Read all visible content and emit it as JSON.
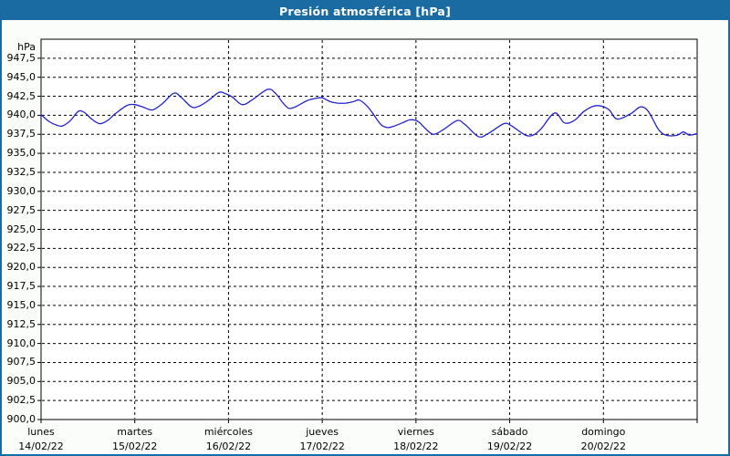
{
  "window": {
    "title": "Presión atmosférica [hPa]"
  },
  "colors": {
    "titlebar_bg": "#1b6ba3",
    "titlebar_text": "#ffffff",
    "frame_border": "#1b6ba3",
    "page_bg": "#fafdfa",
    "plot_bg": "#ffffff",
    "grid": "#000000",
    "axis": "#000000",
    "text": "#000000",
    "line": "#2222cc"
  },
  "chart_data": {
    "type": "line",
    "title": "Presión atmosférica [hPa]",
    "y_unit": "hPa",
    "ylim": [
      900,
      950
    ],
    "ytick_step": 2.5,
    "x_hours_span": 168,
    "grid": "dashed",
    "legend": "none",
    "yticks": [
      {
        "label": "947,5",
        "value": 947.5
      },
      {
        "label": "945,0",
        "value": 945.0
      },
      {
        "label": "942,5",
        "value": 942.5
      },
      {
        "label": "940,0",
        "value": 940.0
      },
      {
        "label": "937,5",
        "value": 937.5
      },
      {
        "label": "935,0",
        "value": 935.0
      },
      {
        "label": "932,5",
        "value": 932.5
      },
      {
        "label": "930,0",
        "value": 930.0
      },
      {
        "label": "927,5",
        "value": 927.5
      },
      {
        "label": "925,0",
        "value": 925.0
      },
      {
        "label": "922,5",
        "value": 922.5
      },
      {
        "label": "920,0",
        "value": 920.0
      },
      {
        "label": "917,5",
        "value": 917.5
      },
      {
        "label": "915,0",
        "value": 915.0
      },
      {
        "label": "912,5",
        "value": 912.5
      },
      {
        "label": "910,0",
        "value": 910.0
      },
      {
        "label": "907,5",
        "value": 907.5
      },
      {
        "label": "905,0",
        "value": 905.0
      },
      {
        "label": "902,5",
        "value": 902.5
      },
      {
        "label": "900,0",
        "value": 900.0
      }
    ],
    "days": [
      {
        "name": "lunes",
        "date": "14/02/22"
      },
      {
        "name": "martes",
        "date": "15/02/22"
      },
      {
        "name": "miércoles",
        "date": "16/02/22"
      },
      {
        "name": "jueves",
        "date": "17/02/22"
      },
      {
        "name": "viernes",
        "date": "18/02/22"
      },
      {
        "name": "sábado",
        "date": "19/02/22"
      },
      {
        "name": "domingo",
        "date": "20/02/22"
      }
    ],
    "series": [
      {
        "name": "presión atmosférica",
        "color": "#2222cc",
        "points_t_hPa": [
          [
            0,
            940.1
          ],
          [
            2,
            939.2
          ],
          [
            4,
            938.7
          ],
          [
            5.5,
            938.6
          ],
          [
            7.5,
            939.3
          ],
          [
            9.5,
            940.5
          ],
          [
            11,
            940.4
          ],
          [
            13,
            939.5
          ],
          [
            15,
            938.9
          ],
          [
            17,
            939.3
          ],
          [
            19,
            940.2
          ],
          [
            22,
            941.3
          ],
          [
            24,
            941.4
          ],
          [
            26,
            941.1
          ],
          [
            28.5,
            940.7
          ],
          [
            31,
            941.5
          ],
          [
            34,
            942.9
          ],
          [
            36,
            942.3
          ],
          [
            38.5,
            941.1
          ],
          [
            40.5,
            941.2
          ],
          [
            43,
            942.0
          ],
          [
            45.5,
            943.0
          ],
          [
            47,
            942.9
          ],
          [
            49,
            942.4
          ],
          [
            51.5,
            941.4
          ],
          [
            54,
            942.0
          ],
          [
            58,
            943.4
          ],
          [
            60,
            942.9
          ],
          [
            62,
            941.6
          ],
          [
            63.5,
            940.9
          ],
          [
            65.5,
            941.2
          ],
          [
            68,
            941.9
          ],
          [
            70,
            942.2
          ],
          [
            72,
            942.3
          ],
          [
            74,
            941.8
          ],
          [
            76,
            941.6
          ],
          [
            78,
            941.6
          ],
          [
            80,
            941.8
          ],
          [
            81.5,
            942.0
          ],
          [
            83.5,
            941.2
          ],
          [
            85,
            940.2
          ],
          [
            87,
            938.8
          ],
          [
            88.5,
            938.4
          ],
          [
            90,
            938.5
          ],
          [
            92.5,
            939.0
          ],
          [
            94.5,
            939.4
          ],
          [
            96.5,
            939.2
          ],
          [
            98.5,
            938.2
          ],
          [
            100.5,
            937.5
          ],
          [
            103,
            938.1
          ],
          [
            106.5,
            939.3
          ],
          [
            108.5,
            938.8
          ],
          [
            112,
            937.2
          ],
          [
            114.5,
            937.6
          ],
          [
            118.5,
            938.9
          ],
          [
            120.5,
            938.6
          ],
          [
            124,
            937.4
          ],
          [
            126,
            937.4
          ],
          [
            128,
            938.2
          ],
          [
            131.5,
            940.3
          ],
          [
            134,
            939.0
          ],
          [
            136.5,
            939.3
          ],
          [
            139,
            940.5
          ],
          [
            141.5,
            941.2
          ],
          [
            143.5,
            941.2
          ],
          [
            145.5,
            940.7
          ],
          [
            147.5,
            939.5
          ],
          [
            151,
            940.2
          ],
          [
            153.5,
            941.1
          ],
          [
            155.5,
            940.5
          ],
          [
            158,
            938.2
          ],
          [
            159.5,
            937.5
          ],
          [
            161,
            937.3
          ],
          [
            163,
            937.4
          ],
          [
            164.5,
            937.8
          ],
          [
            166,
            937.4
          ],
          [
            168,
            937.6
          ]
        ]
      }
    ]
  }
}
